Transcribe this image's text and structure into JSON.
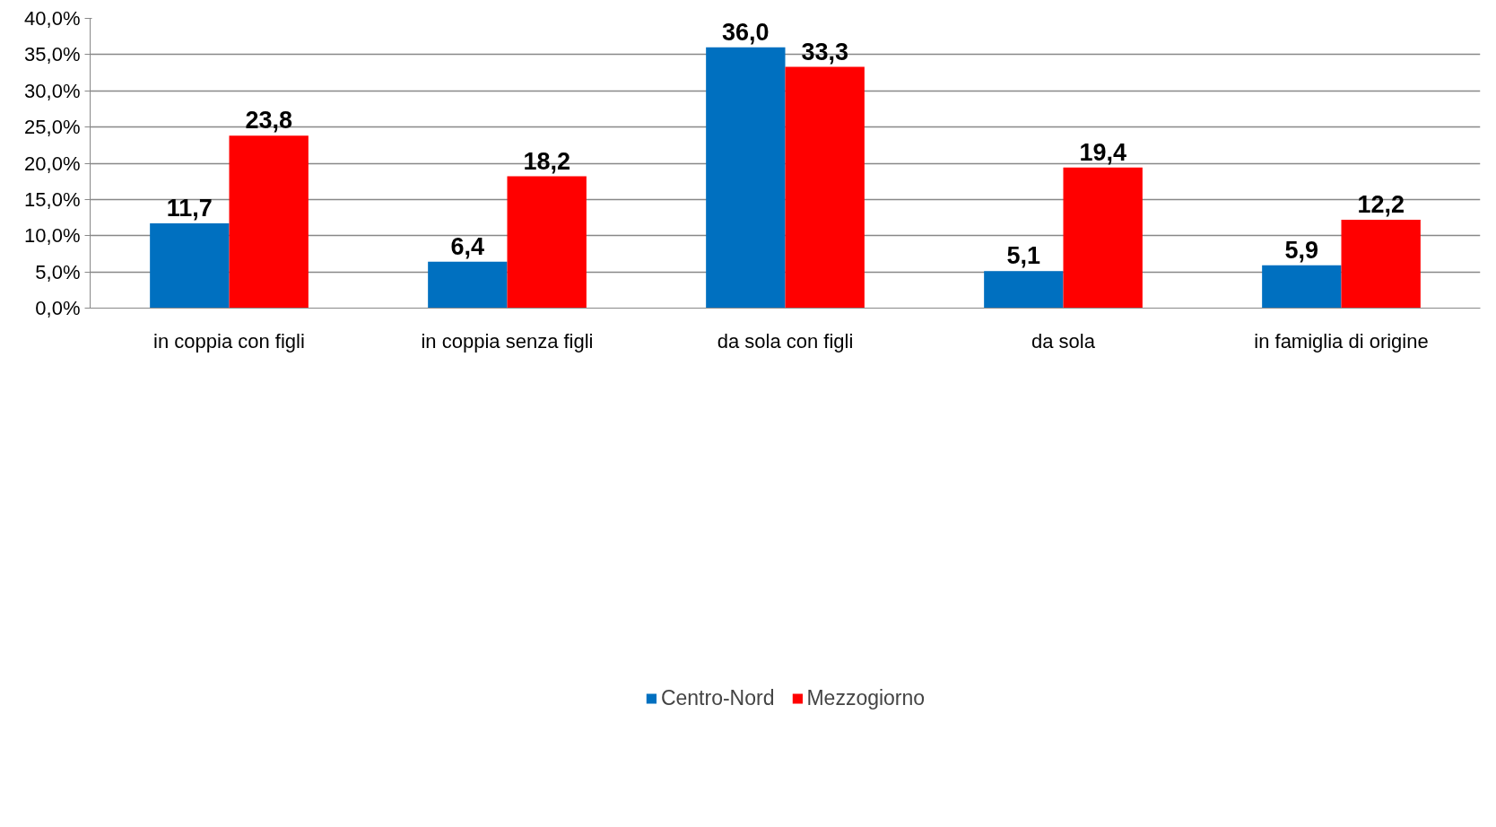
{
  "chart_data": {
    "type": "bar",
    "categories": [
      "in coppia con figli",
      "in coppia senza figli",
      "da sola con figli",
      "da sola",
      "in famiglia di origine"
    ],
    "series": [
      {
        "name": "Centro-Nord",
        "color": "#0070c0",
        "values": [
          11.7,
          6.4,
          36.0,
          5.1,
          5.9
        ],
        "value_labels": [
          "11,7",
          "6,4",
          "36,0",
          "5,1",
          "5,9"
        ]
      },
      {
        "name": "Mezzogiorno",
        "color": "#ff0000",
        "values": [
          23.8,
          18.2,
          33.3,
          19.4,
          12.2
        ],
        "value_labels": [
          "23,8",
          "18,2",
          "33,3",
          "19,4",
          "12,2"
        ]
      }
    ],
    "ylim": [
      0,
      40
    ],
    "yticks": [
      {
        "value": 0,
        "label": "0,0%"
      },
      {
        "value": 5,
        "label": "5,0%"
      },
      {
        "value": 10,
        "label": "10,0%"
      },
      {
        "value": 15,
        "label": "15,0%"
      },
      {
        "value": 20,
        "label": "20,0%"
      },
      {
        "value": 25,
        "label": "25,0%"
      },
      {
        "value": 30,
        "label": "30,0%"
      },
      {
        "value": 35,
        "label": "35,0%"
      },
      {
        "value": 40,
        "label": "40,0%"
      }
    ],
    "grid": "y",
    "legend": "bottom"
  }
}
